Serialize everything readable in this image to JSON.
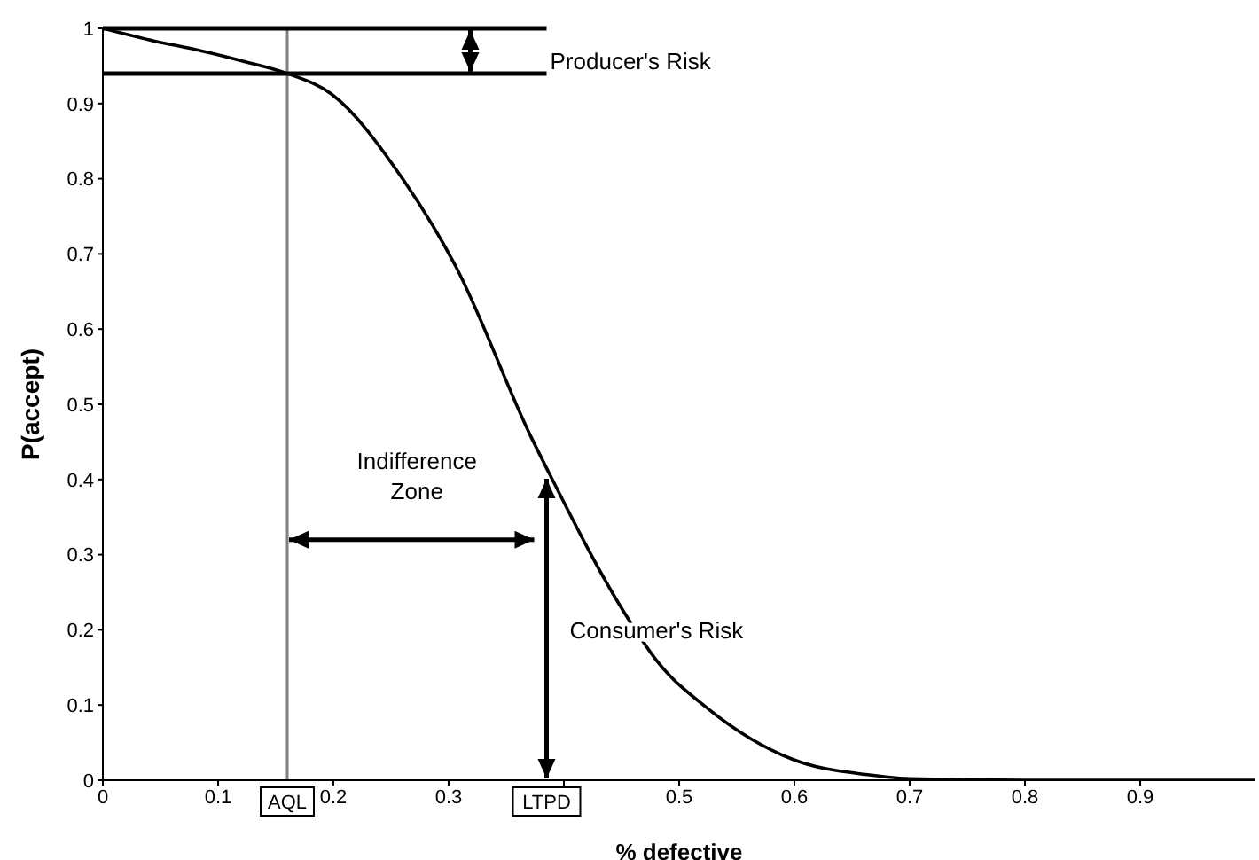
{
  "chart_data": {
    "type": "line",
    "xlabel": "% defective",
    "ylabel": "P(accept)",
    "x": [
      0,
      0.045,
      0.08,
      0.12,
      0.16,
      0.198,
      0.26,
      0.306,
      0.372,
      0.385,
      0.454,
      0.48,
      0.526,
      0.598,
      0.665,
      0.7,
      0.8,
      0.9,
      1.0
    ],
    "series": [
      {
        "color": "#000000",
        "values": [
          1,
          0.983,
          0.972,
          0.957,
          0.94,
          0.913,
          0.8,
          0.684,
          0.455,
          0.415,
          0.219,
          0.16,
          0.094,
          0.028,
          0.007,
          0.002,
          0,
          0,
          0
        ]
      }
    ],
    "xlim": [
      0,
      1
    ],
    "xticks": [
      0,
      0.1,
      0.2,
      0.3,
      {
        "value": 0.4,
        "label": null
      },
      0.5,
      0.6,
      0.7,
      0.8,
      0.9
    ],
    "ylim": [
      0,
      1
    ],
    "yticks": [
      0,
      0.1,
      0.2,
      0.3,
      0.4,
      0.5,
      0.6,
      0.7,
      0.8,
      0.9,
      1
    ],
    "grid": false,
    "legend": false,
    "marker": "none",
    "line_style": "solid",
    "ref_lines": [
      {
        "axis": "x",
        "value": 0.16,
        "label": "AQL",
        "color": "#808080"
      },
      {
        "axis": "x",
        "value": 0.385,
        "label": "LTPD",
        "color": "#000000"
      },
      {
        "axis": "y",
        "value": 1,
        "color": "#000000"
      },
      {
        "axis": "y",
        "value": 0.94,
        "color": "#000000"
      }
    ],
    "annotations": [
      "Producer's Risk",
      "Indifference Zone",
      "Consumer's Risk"
    ]
  }
}
